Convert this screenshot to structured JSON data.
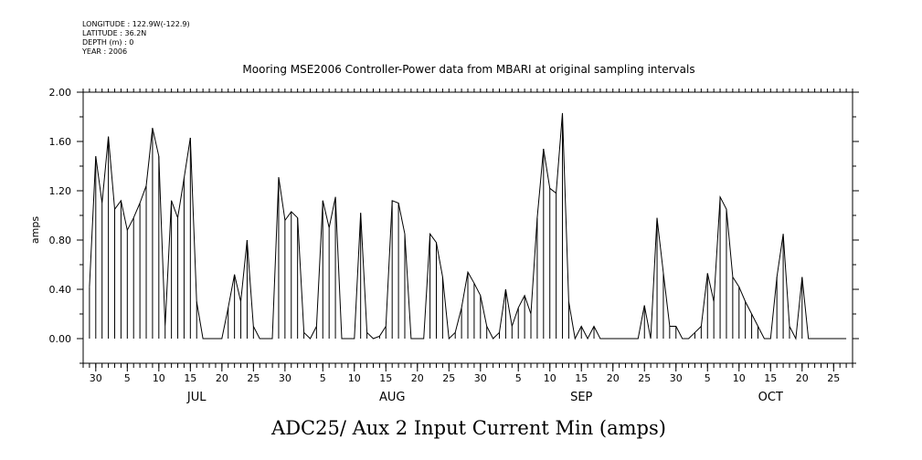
{
  "metadata": {
    "longitude": "LONGITUDE : 122.9W(-122.9)",
    "latitude": "LATITUDE : 36.2N",
    "depth": "DEPTH (m) : 0",
    "year": "YEAR : 2006"
  },
  "chart_data": {
    "type": "line",
    "title": "Mooring MSE2006 Controller-Power data from MBARI at original sampling intervals",
    "xlabel": "ADC25/ Aux 2 Input Current Min (amps)",
    "ylabel": "amps",
    "ylim": [
      -0.2,
      2.0
    ],
    "xlim": [
      "2006-06-28",
      "2006-10-28"
    ],
    "yticks": [
      0.0,
      0.4,
      0.8,
      1.2,
      1.6,
      2.0
    ],
    "ytick_labels": [
      "0.00",
      "0.40",
      "0.80",
      "1.20",
      "1.60",
      "2.00"
    ],
    "xtick_labels": [
      {
        "date": "2006-06-30",
        "label": "30"
      },
      {
        "date": "2006-07-05",
        "label": "5"
      },
      {
        "date": "2006-07-10",
        "label": "10"
      },
      {
        "date": "2006-07-15",
        "label": "15"
      },
      {
        "date": "2006-07-20",
        "label": "20"
      },
      {
        "date": "2006-07-25",
        "label": "25"
      },
      {
        "date": "2006-07-30",
        "label": "30"
      },
      {
        "date": "2006-08-05",
        "label": "5"
      },
      {
        "date": "2006-08-10",
        "label": "10"
      },
      {
        "date": "2006-08-15",
        "label": "15"
      },
      {
        "date": "2006-08-20",
        "label": "20"
      },
      {
        "date": "2006-08-25",
        "label": "25"
      },
      {
        "date": "2006-08-30",
        "label": "30"
      },
      {
        "date": "2006-09-05",
        "label": "5"
      },
      {
        "date": "2006-09-10",
        "label": "10"
      },
      {
        "date": "2006-09-15",
        "label": "15"
      },
      {
        "date": "2006-09-20",
        "label": "20"
      },
      {
        "date": "2006-09-25",
        "label": "25"
      },
      {
        "date": "2006-09-30",
        "label": "30"
      },
      {
        "date": "2006-10-05",
        "label": "5"
      },
      {
        "date": "2006-10-10",
        "label": "10"
      },
      {
        "date": "2006-10-15",
        "label": "15"
      },
      {
        "date": "2006-10-20",
        "label": "20"
      },
      {
        "date": "2006-10-25",
        "label": "25"
      }
    ],
    "month_labels": [
      {
        "date": "2006-07-16",
        "label": "JUL"
      },
      {
        "date": "2006-08-16",
        "label": "AUG"
      },
      {
        "date": "2006-09-15",
        "label": "SEP"
      },
      {
        "date": "2006-10-15",
        "label": "OCT"
      }
    ],
    "grid": false,
    "series": [
      {
        "color": "#000000",
        "x": [
          "2006-06-29",
          "2006-06-30",
          "2006-07-01",
          "2006-07-02",
          "2006-07-03",
          "2006-07-04",
          "2006-07-05",
          "2006-07-06",
          "2006-07-07",
          "2006-07-08",
          "2006-07-09",
          "2006-07-10",
          "2006-07-11",
          "2006-07-12",
          "2006-07-13",
          "2006-07-14",
          "2006-07-15",
          "2006-07-16",
          "2006-07-17",
          "2006-07-18",
          "2006-07-19",
          "2006-07-20",
          "2006-07-21",
          "2006-07-22",
          "2006-07-23",
          "2006-07-24",
          "2006-07-25",
          "2006-07-26",
          "2006-07-27",
          "2006-07-28",
          "2006-07-29",
          "2006-07-30",
          "2006-07-31",
          "2006-08-01",
          "2006-08-02",
          "2006-08-03",
          "2006-08-04",
          "2006-08-05",
          "2006-08-06",
          "2006-08-07",
          "2006-08-08",
          "2006-08-09",
          "2006-08-10",
          "2006-08-11",
          "2006-08-12",
          "2006-08-13",
          "2006-08-14",
          "2006-08-15",
          "2006-08-16",
          "2006-08-17",
          "2006-08-18",
          "2006-08-19",
          "2006-08-20",
          "2006-08-21",
          "2006-08-22",
          "2006-08-23",
          "2006-08-24",
          "2006-08-25",
          "2006-08-26",
          "2006-08-27",
          "2006-08-28",
          "2006-08-29",
          "2006-08-30",
          "2006-08-31",
          "2006-09-01",
          "2006-09-02",
          "2006-09-03",
          "2006-09-04",
          "2006-09-05",
          "2006-09-06",
          "2006-09-07",
          "2006-09-08",
          "2006-09-09",
          "2006-09-10",
          "2006-09-11",
          "2006-09-12",
          "2006-09-13",
          "2006-09-14",
          "2006-09-15",
          "2006-09-16",
          "2006-09-17",
          "2006-09-18",
          "2006-09-19",
          "2006-09-20",
          "2006-09-21",
          "2006-09-22",
          "2006-09-23",
          "2006-09-24",
          "2006-09-25",
          "2006-09-26",
          "2006-09-27",
          "2006-09-28",
          "2006-09-29",
          "2006-09-30",
          "2006-10-01",
          "2006-10-02",
          "2006-10-03",
          "2006-10-04",
          "2006-10-05",
          "2006-10-06",
          "2006-10-07",
          "2006-10-08",
          "2006-10-09",
          "2006-10-10",
          "2006-10-11",
          "2006-10-12",
          "2006-10-13",
          "2006-10-14",
          "2006-10-15",
          "2006-10-16",
          "2006-10-17",
          "2006-10-18",
          "2006-10-19",
          "2006-10-20",
          "2006-10-21",
          "2006-10-22",
          "2006-10-23",
          "2006-10-24",
          "2006-10-25",
          "2006-10-26",
          "2006-10-27"
        ],
        "y": [
          0.42,
          1.48,
          1.1,
          1.64,
          1.05,
          1.12,
          0.88,
          0.98,
          1.1,
          1.24,
          1.71,
          1.48,
          0.1,
          1.12,
          0.98,
          1.3,
          1.63,
          0.3,
          0.0,
          0.0,
          0.0,
          0.0,
          0.25,
          0.52,
          0.3,
          0.8,
          0.1,
          0.0,
          0.0,
          0.0,
          1.31,
          0.96,
          1.03,
          0.98,
          0.05,
          0.0,
          0.1,
          1.12,
          0.9,
          1.15,
          0.0,
          0.0,
          0.0,
          1.02,
          0.05,
          0.0,
          0.02,
          0.1,
          1.12,
          1.1,
          0.85,
          0.0,
          0.0,
          0.0,
          0.85,
          0.78,
          0.5,
          0.0,
          0.05,
          0.25,
          0.54,
          0.45,
          0.35,
          0.1,
          0.0,
          0.05,
          0.4,
          0.1,
          0.25,
          0.35,
          0.2,
          0.98,
          1.54,
          1.22,
          1.18,
          1.83,
          0.3,
          0.0,
          0.1,
          0.0,
          0.1,
          0.0,
          0.0,
          0.0,
          0.0,
          0.0,
          0.0,
          0.0,
          0.27,
          0.0,
          0.98,
          0.53,
          0.1,
          0.1,
          0.0,
          0.0,
          0.05,
          0.1,
          0.53,
          0.3,
          1.15,
          1.05,
          0.5,
          0.42,
          0.3,
          0.2,
          0.1,
          0.0,
          0.0,
          0.5,
          0.85,
          0.1,
          0.0,
          0.5,
          0.0,
          0.0,
          0.0,
          0.0,
          0.0,
          0.0,
          0.0
        ]
      }
    ]
  }
}
